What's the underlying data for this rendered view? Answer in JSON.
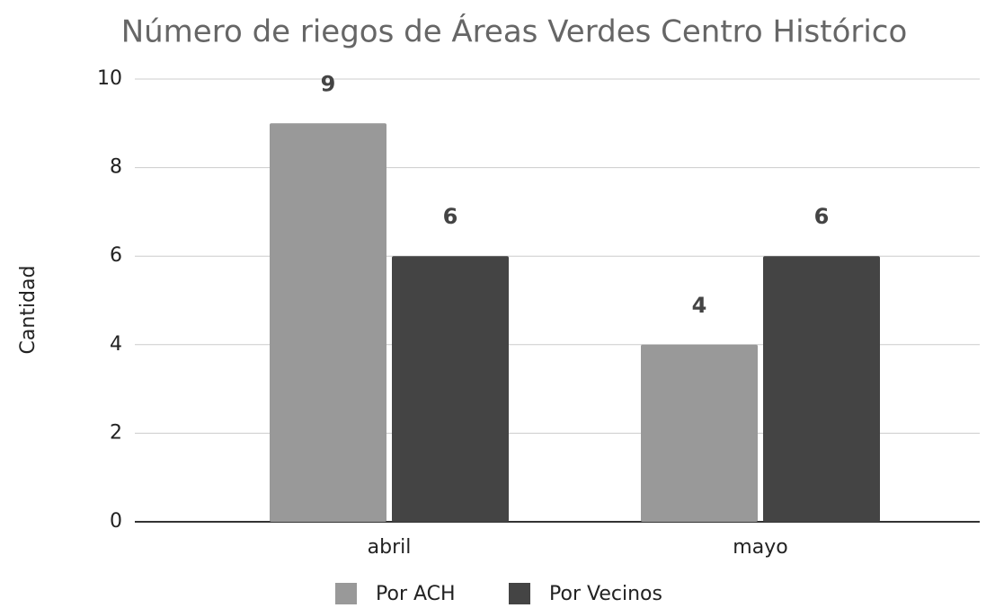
{
  "chart_data": {
    "type": "bar",
    "title": "Número de riegos de Áreas Verdes Centro Histórico",
    "y_label": "Cantidad",
    "categories": [
      "abril",
      "mayo"
    ],
    "series": [
      {
        "name": "Por ACH",
        "color": "#999999",
        "values": [
          9,
          4
        ]
      },
      {
        "name": "Por Vecinos",
        "color": "#444444",
        "values": [
          6,
          6
        ]
      }
    ],
    "ylim": [
      0,
      10
    ],
    "yticks": [
      0,
      2,
      4,
      6,
      8,
      10
    ],
    "grid": true,
    "legend": "bottom"
  }
}
